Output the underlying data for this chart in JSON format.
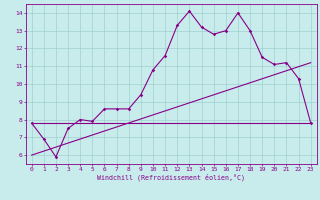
{
  "xlabel": "Windchill (Refroidissement éolien,°C)",
  "x_ticks": [
    0,
    1,
    2,
    3,
    4,
    5,
    6,
    7,
    8,
    9,
    10,
    11,
    12,
    13,
    14,
    15,
    16,
    17,
    18,
    19,
    20,
    21,
    22,
    23
  ],
  "ylim": [
    5.5,
    14.5
  ],
  "xlim": [
    -0.5,
    23.5
  ],
  "y_ticks": [
    6,
    7,
    8,
    9,
    10,
    11,
    12,
    13,
    14
  ],
  "bg_color": "#c8ecec",
  "line_color": "#880088",
  "grid_color": "#a0d0d0",
  "line1_x": [
    0,
    1,
    2,
    3,
    4,
    5,
    6,
    7,
    8,
    9,
    10,
    11,
    12,
    13,
    14,
    15,
    16,
    17,
    18,
    19,
    20,
    21,
    22,
    23
  ],
  "line1_y": [
    7.8,
    6.9,
    5.9,
    7.5,
    8.0,
    7.9,
    8.6,
    8.6,
    8.6,
    9.4,
    10.8,
    11.6,
    13.3,
    14.1,
    13.2,
    12.8,
    13.0,
    14.0,
    13.0,
    11.5,
    11.1,
    11.2,
    10.3,
    7.8
  ],
  "line2_x": [
    0,
    23
  ],
  "line2_y": [
    7.8,
    7.8
  ],
  "line3_x": [
    0,
    23
  ],
  "line3_y": [
    6.0,
    11.2
  ]
}
